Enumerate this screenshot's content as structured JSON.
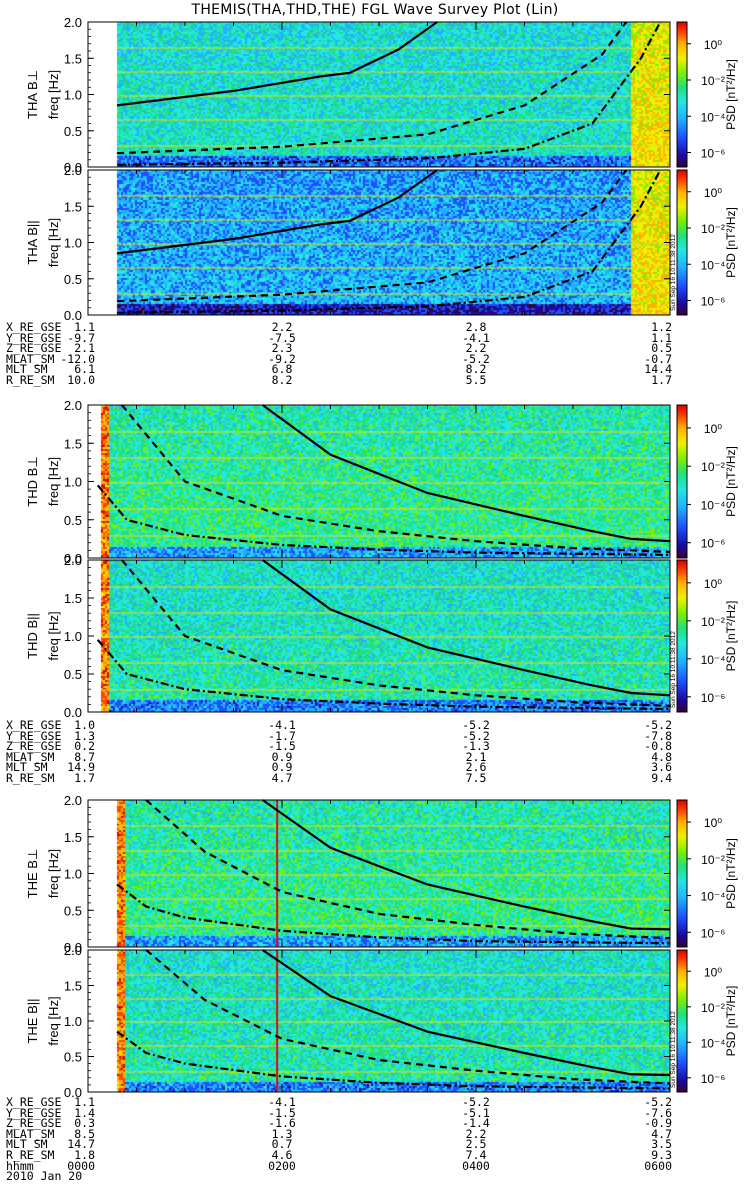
{
  "title": "THEMIS(THA,THD,THE) FGL Wave Survey Plot (Lin)",
  "stamp": "Sun Sep 16 10:11:38 2012",
  "chart_data": [
    {
      "type": "heatmap",
      "probe": "THA",
      "panels": [
        {
          "ylabel_component": "THA B⊥",
          "ylabel_unit": "freq [Hz]"
        },
        {
          "ylabel_component": "THA B||",
          "ylabel_unit": "freq [Hz]"
        }
      ],
      "ylim": [
        0,
        2.0
      ],
      "yticks": [
        "0.0",
        "0.5",
        "1.0",
        "1.5",
        "2.0"
      ],
      "xlim_hours": [
        0,
        6
      ],
      "data_start_hour": 0.3,
      "high_power_start_hour": 5.6,
      "curves": [
        {
          "style": "solid",
          "points": [
            [
              0.3,
              0.85
            ],
            [
              1.5,
              1.05
            ],
            [
              2.4,
              1.25
            ],
            [
              2.7,
              1.3
            ],
            [
              3.2,
              1.62
            ],
            [
              3.6,
              2.0
            ]
          ]
        },
        {
          "style": "dashed",
          "points": [
            [
              0.3,
              0.19
            ],
            [
              2.0,
              0.28
            ],
            [
              3.5,
              0.45
            ],
            [
              4.5,
              0.85
            ],
            [
              5.3,
              1.55
            ],
            [
              5.55,
              2.0
            ]
          ]
        },
        {
          "style": "dash-dot",
          "points": [
            [
              0.3,
              0.03
            ],
            [
              2.0,
              0.06
            ],
            [
              3.5,
              0.12
            ],
            [
              4.5,
              0.25
            ],
            [
              5.2,
              0.6
            ],
            [
              5.7,
              1.5
            ],
            [
              5.9,
              2.0
            ]
          ]
        }
      ],
      "ephemeris_labels": [
        "X_RE_GSE",
        "Y_RE_GSE",
        "Z_RE_GSE",
        "MLAT_SM",
        "MLT_SM",
        "R_RE_SM"
      ],
      "ephemeris": [
        [
          "1.1",
          "2.2",
          "2.8",
          "1.2"
        ],
        [
          "-9.7",
          "-7.5",
          "-4.1",
          "1.1"
        ],
        [
          "2.1",
          "2.3",
          "2.2",
          "0.5"
        ],
        [
          "-12.0",
          "-9.2",
          "-5.2",
          "-0.7"
        ],
        [
          "6.1",
          "6.8",
          "8.2",
          "14.4"
        ],
        [
          "10.0",
          "8.2",
          "5.5",
          "1.7"
        ]
      ]
    },
    {
      "type": "heatmap",
      "probe": "THD",
      "panels": [
        {
          "ylabel_component": "THD B⊥",
          "ylabel_unit": "freq [Hz]"
        },
        {
          "ylabel_component": "THD B||",
          "ylabel_unit": "freq [Hz]"
        }
      ],
      "ylim": [
        0,
        2.0
      ],
      "yticks": [
        "0.0",
        "0.5",
        "1.0",
        "1.5",
        "2.0"
      ],
      "xlim_hours": [
        0,
        6
      ],
      "data_start_hour": 0.13,
      "curves": [
        {
          "style": "solid",
          "points": [
            [
              1.8,
              2.0
            ],
            [
              2.5,
              1.35
            ],
            [
              3.5,
              0.85
            ],
            [
              4.5,
              0.55
            ],
            [
              5.2,
              0.35
            ],
            [
              5.6,
              0.25
            ],
            [
              6.0,
              0.22
            ]
          ]
        },
        {
          "style": "dashed",
          "points": [
            [
              0.35,
              2.0
            ],
            [
              1.0,
              1.0
            ],
            [
              2.0,
              0.55
            ],
            [
              3.0,
              0.35
            ],
            [
              4.0,
              0.22
            ],
            [
              5.0,
              0.13
            ],
            [
              6.0,
              0.08
            ]
          ]
        },
        {
          "style": "dash-dot",
          "points": [
            [
              0.1,
              0.95
            ],
            [
              0.4,
              0.5
            ],
            [
              1.0,
              0.3
            ],
            [
              2.0,
              0.17
            ],
            [
              3.0,
              0.11
            ],
            [
              4.0,
              0.07
            ],
            [
              6.0,
              0.04
            ]
          ]
        }
      ],
      "ephemeris_labels": [
        "X_RE_GSE",
        "Y_RE_GSE",
        "Z_RE_GSE",
        "MLAT_SM",
        "MLT_SM",
        "R_RE_SM"
      ],
      "ephemeris": [
        [
          "1.0",
          "-4.1",
          "-5.2",
          "-5.2"
        ],
        [
          "1.3",
          "-1.7",
          "-5.2",
          "-7.8"
        ],
        [
          "0.2",
          "-1.5",
          "-1.3",
          "-0.8"
        ],
        [
          "8.7",
          "0.9",
          "2.1",
          "4.8"
        ],
        [
          "14.9",
          "0.9",
          "2.6",
          "3.6"
        ],
        [
          "1.7",
          "4.7",
          "7.5",
          "9.4"
        ]
      ]
    },
    {
      "type": "heatmap",
      "probe": "THE",
      "panels": [
        {
          "ylabel_component": "THE B⊥",
          "ylabel_unit": "freq [Hz]"
        },
        {
          "ylabel_component": "THE B||",
          "ylabel_unit": "freq [Hz]"
        }
      ],
      "ylim": [
        0,
        2.0
      ],
      "yticks": [
        "0.0",
        "0.5",
        "1.0",
        "1.5",
        "2.0"
      ],
      "xlim_hours": [
        0,
        6
      ],
      "data_start_hour": 0.3,
      "marker_hour": 1.95,
      "curves": [
        {
          "style": "solid",
          "points": [
            [
              1.8,
              2.0
            ],
            [
              2.5,
              1.35
            ],
            [
              3.5,
              0.85
            ],
            [
              4.5,
              0.55
            ],
            [
              5.2,
              0.35
            ],
            [
              5.6,
              0.25
            ],
            [
              6.0,
              0.24
            ]
          ]
        },
        {
          "style": "dashed",
          "points": [
            [
              0.6,
              2.0
            ],
            [
              1.2,
              1.3
            ],
            [
              2.0,
              0.75
            ],
            [
              3.0,
              0.45
            ],
            [
              4.0,
              0.3
            ],
            [
              5.0,
              0.18
            ],
            [
              6.0,
              0.12
            ]
          ]
        },
        {
          "style": "dash-dot",
          "points": [
            [
              0.3,
              0.85
            ],
            [
              0.6,
              0.55
            ],
            [
              1.0,
              0.4
            ],
            [
              2.0,
              0.22
            ],
            [
              3.0,
              0.13
            ],
            [
              4.0,
              0.08
            ],
            [
              6.0,
              0.05
            ]
          ]
        }
      ],
      "ephemeris_labels": [
        "X_RE_GSE",
        "Y_RE_GSE",
        "Z_RE_GSE",
        "MLAT_SM",
        "MLT_SM",
        "R_RE_SM"
      ],
      "ephemeris": [
        [
          "1.1",
          "-4.1",
          "-5.2",
          "-5.2"
        ],
        [
          "1.4",
          "-1.5",
          "-5.1",
          "-7.6"
        ],
        [
          "0.3",
          "-1.6",
          "-1.4",
          "-0.9"
        ],
        [
          "8.5",
          "1.3",
          "2.2",
          "4.7"
        ],
        [
          "14.7",
          "0.7",
          "2.5",
          "3.5"
        ],
        [
          "1.8",
          "4.6",
          "7.4",
          "9.3"
        ]
      ]
    }
  ],
  "time_axis": {
    "label": "hhmm",
    "ticks": [
      "0000",
      "0200",
      "0400",
      "0600"
    ],
    "date": "2010 Jan 20"
  },
  "colorbar": {
    "label": "PSD [nT²/Hz]",
    "ticks": [
      "10⁰",
      "10⁻²",
      "10⁻⁴",
      "10⁻⁶"
    ],
    "colors": [
      "#3b0030",
      "#1a0aa0",
      "#1f4fff",
      "#21b0ff",
      "#22e8e0",
      "#22e07a",
      "#7cf000",
      "#f0f000",
      "#ffb000",
      "#ff4000",
      "#d80000"
    ]
  }
}
